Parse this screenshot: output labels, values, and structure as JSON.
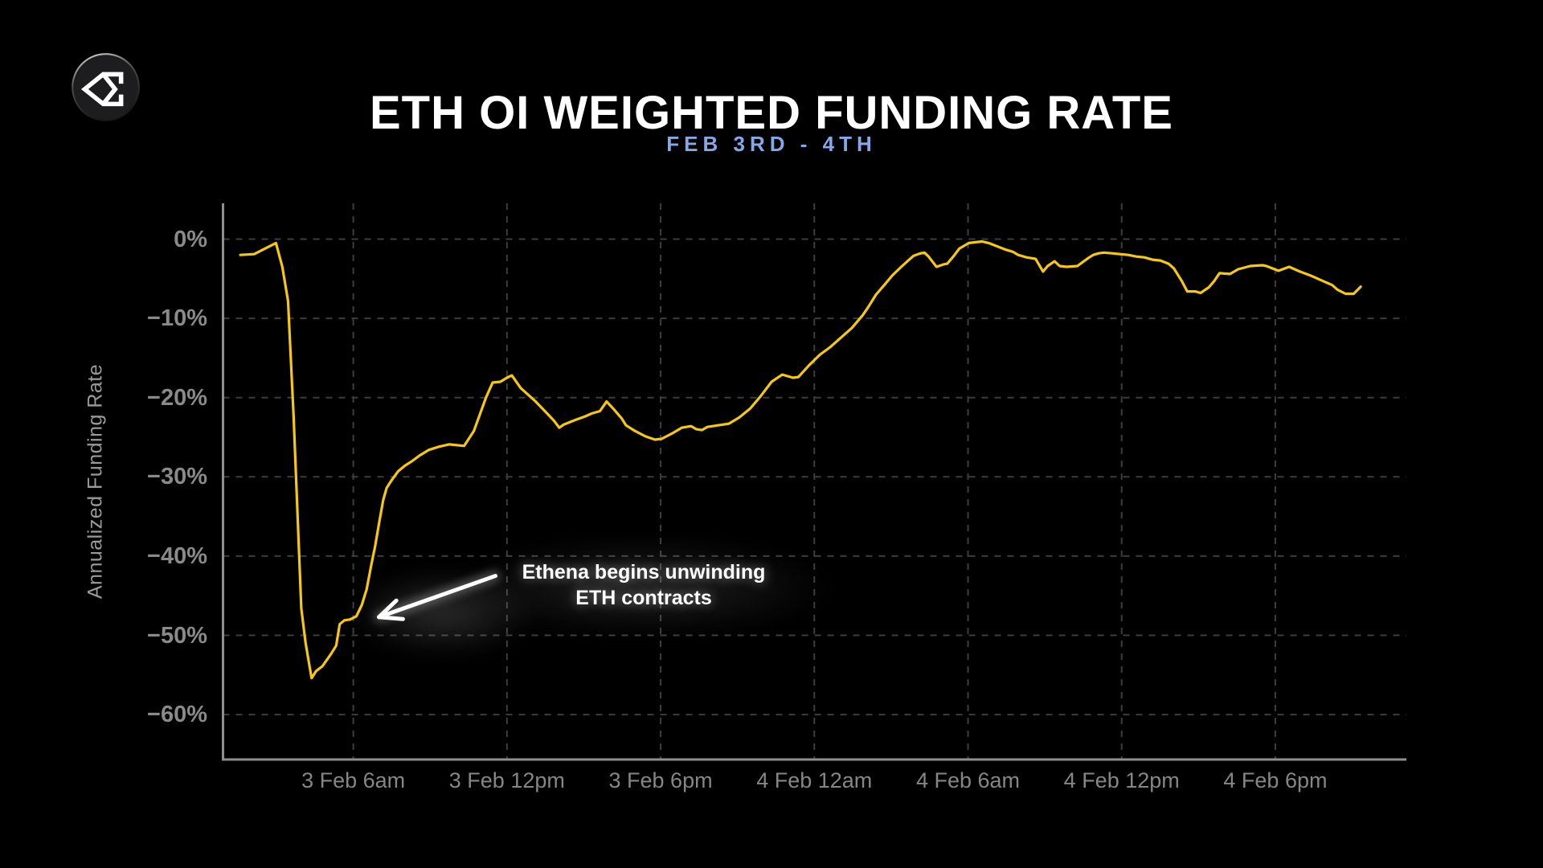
{
  "header": {
    "logo_alt": "ethena-logo"
  },
  "chart_data": {
    "type": "line",
    "title": "ETH OI WEIGHTED FUNDING RATE",
    "subtitle": "FEB 3RD - 4TH",
    "ylabel": "Annualized Funding Rate",
    "xlabel": "",
    "series_name": "ETH OI weighted funding rate (annualized %)",
    "grid": "dashed",
    "legend": "none",
    "ylim": [
      -65.7,
      4.5
    ],
    "xlim_hours": [
      0.9,
      47.1
    ],
    "x_unit": "hours since 3 Feb 12am",
    "colors": {
      "background": "#000000",
      "line": "#f6c90d",
      "title": "#ffffff",
      "subtitle": "#84a9e6",
      "tick_labels": "#8a8a8a",
      "axis": "#8f8f8f",
      "gridline": "#3d3d3d",
      "annotation": "#ffffff"
    },
    "y_ticks": [
      {
        "value": 0,
        "label": "0%"
      },
      {
        "value": -10,
        "label": "−10%"
      },
      {
        "value": -20,
        "label": "−20%"
      },
      {
        "value": -30,
        "label": "−30%"
      },
      {
        "value": -40,
        "label": "−40%"
      },
      {
        "value": -50,
        "label": "−50%"
      },
      {
        "value": -60,
        "label": "−60%"
      }
    ],
    "x_ticks": [
      {
        "hours": 6,
        "label": "3 Feb 6am"
      },
      {
        "hours": 12,
        "label": "3 Feb 12pm"
      },
      {
        "hours": 18,
        "label": "3 Feb 6pm"
      },
      {
        "hours": 24,
        "label": "4 Feb 12am"
      },
      {
        "hours": 30,
        "label": "4 Feb 6am"
      },
      {
        "hours": 36,
        "label": "4 Feb 12pm"
      },
      {
        "hours": 42,
        "label": "4 Feb 6pm"
      }
    ],
    "annotation": {
      "line1": "Ethena begins unwinding",
      "line2": "ETH contracts",
      "text_center_hours": 17.34,
      "text_top_value": -40.4,
      "arrow_from": [
        11.55,
        -42.5
      ],
      "arrow_to": [
        7.0,
        -47.7
      ]
    },
    "points": [
      [
        1.59,
        -2.0
      ],
      [
        2.13,
        -1.9
      ],
      [
        2.55,
        -1.2
      ],
      [
        2.98,
        -0.5
      ],
      [
        3.23,
        -3.5
      ],
      [
        3.45,
        -7.8
      ],
      [
        3.67,
        -22.5
      ],
      [
        3.97,
        -46.6
      ],
      [
        4.14,
        -51.0
      ],
      [
        4.37,
        -55.4
      ],
      [
        4.55,
        -54.5
      ],
      [
        4.79,
        -53.9
      ],
      [
        4.99,
        -53.0
      ],
      [
        5.14,
        -52.3
      ],
      [
        5.33,
        -51.3
      ],
      [
        5.47,
        -48.6
      ],
      [
        5.65,
        -48.1
      ],
      [
        5.87,
        -48.0
      ],
      [
        6.12,
        -47.6
      ],
      [
        6.33,
        -46.2
      ],
      [
        6.52,
        -44.2
      ],
      [
        6.71,
        -41.0
      ],
      [
        6.85,
        -38.8
      ],
      [
        7.02,
        -35.6
      ],
      [
        7.17,
        -32.9
      ],
      [
        7.3,
        -31.4
      ],
      [
        7.48,
        -30.5
      ],
      [
        7.75,
        -29.3
      ],
      [
        8.01,
        -28.6
      ],
      [
        8.3,
        -28.0
      ],
      [
        8.59,
        -27.3
      ],
      [
        8.95,
        -26.6
      ],
      [
        9.34,
        -26.2
      ],
      [
        9.74,
        -25.9
      ],
      [
        10.33,
        -26.1
      ],
      [
        10.71,
        -24.2
      ],
      [
        11.18,
        -20.0
      ],
      [
        11.44,
        -18.1
      ],
      [
        11.74,
        -18.0
      ],
      [
        12.0,
        -17.5
      ],
      [
        12.19,
        -17.2
      ],
      [
        12.54,
        -18.8
      ],
      [
        12.88,
        -19.8
      ],
      [
        13.12,
        -20.5
      ],
      [
        13.48,
        -21.7
      ],
      [
        13.83,
        -22.9
      ],
      [
        14.04,
        -23.8
      ],
      [
        14.22,
        -23.4
      ],
      [
        14.53,
        -23.0
      ],
      [
        14.69,
        -22.8
      ],
      [
        15.03,
        -22.4
      ],
      [
        15.32,
        -22.0
      ],
      [
        15.63,
        -21.7
      ],
      [
        15.89,
        -20.5
      ],
      [
        16.15,
        -21.4
      ],
      [
        16.47,
        -22.6
      ],
      [
        16.65,
        -23.5
      ],
      [
        16.99,
        -24.2
      ],
      [
        17.41,
        -24.9
      ],
      [
        17.78,
        -25.3
      ],
      [
        18.04,
        -25.2
      ],
      [
        18.46,
        -24.5
      ],
      [
        18.82,
        -23.8
      ],
      [
        19.19,
        -23.6
      ],
      [
        19.4,
        -24.0
      ],
      [
        19.61,
        -24.1
      ],
      [
        19.82,
        -23.7
      ],
      [
        20.24,
        -23.5
      ],
      [
        20.66,
        -23.3
      ],
      [
        21.07,
        -22.5
      ],
      [
        21.49,
        -21.4
      ],
      [
        21.91,
        -19.8
      ],
      [
        22.33,
        -18.0
      ],
      [
        22.75,
        -17.1
      ],
      [
        23.17,
        -17.5
      ],
      [
        23.38,
        -17.4
      ],
      [
        23.8,
        -15.9
      ],
      [
        24.21,
        -14.6
      ],
      [
        24.63,
        -13.6
      ],
      [
        25.05,
        -12.4
      ],
      [
        25.47,
        -11.2
      ],
      [
        25.89,
        -9.6
      ],
      [
        26.1,
        -8.6
      ],
      [
        26.41,
        -7.0
      ],
      [
        26.73,
        -5.8
      ],
      [
        27.04,
        -4.6
      ],
      [
        27.36,
        -3.6
      ],
      [
        27.67,
        -2.7
      ],
      [
        27.88,
        -2.1
      ],
      [
        28.15,
        -1.8
      ],
      [
        28.3,
        -1.7
      ],
      [
        28.46,
        -2.2
      ],
      [
        28.77,
        -3.5
      ],
      [
        29.03,
        -3.2
      ],
      [
        29.19,
        -3.1
      ],
      [
        29.45,
        -2.1
      ],
      [
        29.66,
        -1.2
      ],
      [
        29.87,
        -0.8
      ],
      [
        30.03,
        -0.5
      ],
      [
        30.29,
        -0.4
      ],
      [
        30.55,
        -0.3
      ],
      [
        30.81,
        -0.5
      ],
      [
        31.13,
        -0.9
      ],
      [
        31.44,
        -1.3
      ],
      [
        31.75,
        -1.6
      ],
      [
        31.96,
        -2.0
      ],
      [
        32.28,
        -2.3
      ],
      [
        32.64,
        -2.5
      ],
      [
        32.93,
        -4.1
      ],
      [
        33.11,
        -3.4
      ],
      [
        33.38,
        -2.8
      ],
      [
        33.58,
        -3.4
      ],
      [
        33.85,
        -3.5
      ],
      [
        34.27,
        -3.4
      ],
      [
        34.48,
        -2.9
      ],
      [
        34.69,
        -2.4
      ],
      [
        34.89,
        -2.0
      ],
      [
        35.1,
        -1.8
      ],
      [
        35.31,
        -1.7
      ],
      [
        35.63,
        -1.8
      ],
      [
        35.94,
        -1.9
      ],
      [
        36.26,
        -2.0
      ],
      [
        36.57,
        -2.2
      ],
      [
        36.88,
        -2.3
      ],
      [
        37.2,
        -2.6
      ],
      [
        37.51,
        -2.7
      ],
      [
        37.83,
        -3.1
      ],
      [
        38.04,
        -3.7
      ],
      [
        38.35,
        -5.3
      ],
      [
        38.56,
        -6.6
      ],
      [
        38.87,
        -6.6
      ],
      [
        39.08,
        -6.8
      ],
      [
        39.4,
        -6.1
      ],
      [
        39.61,
        -5.3
      ],
      [
        39.82,
        -4.3
      ],
      [
        40.23,
        -4.4
      ],
      [
        40.55,
        -3.8
      ],
      [
        41.02,
        -3.4
      ],
      [
        41.49,
        -3.3
      ],
      [
        41.65,
        -3.4
      ],
      [
        42.12,
        -4.0
      ],
      [
        42.54,
        -3.5
      ],
      [
        42.96,
        -4.1
      ],
      [
        43.38,
        -4.6
      ],
      [
        43.8,
        -5.2
      ],
      [
        44.22,
        -5.8
      ],
      [
        44.43,
        -6.4
      ],
      [
        44.74,
        -6.9
      ],
      [
        45.06,
        -6.9
      ],
      [
        45.33,
        -6.0
      ]
    ]
  }
}
